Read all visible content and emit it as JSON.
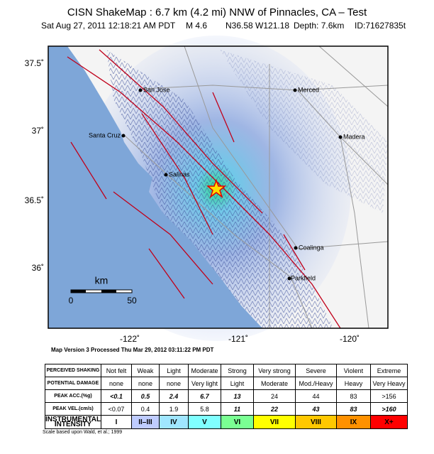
{
  "header": {
    "title": "CISN ShakeMap : 6.7 km (4.2 mi) NNW of Pinnacles, CA – Test",
    "subtitle": [
      "Sat Aug 27, 2011 12:18:21 AM PDT",
      "M 4.6",
      "N36.58 W121.18",
      "Depth: 7.6km",
      "ID:71627835t"
    ]
  },
  "map": {
    "cities": [
      "San Jose",
      "Merced",
      "Santa Cruz",
      "Madera",
      "Salinas",
      "Coalinga",
      "Parkfield"
    ],
    "lat_labels": [
      "37.5˚",
      "37˚",
      "36.5˚",
      "36˚"
    ],
    "lon_labels": [
      "-122˚",
      "-121˚",
      "-120˚"
    ],
    "scale_bar": {
      "unit": "km",
      "labels": [
        "0",
        "50"
      ]
    },
    "version_note": "Map Version 3 Processed Thu Mar 29, 2012 03:11:22 PM PDT"
  },
  "table": {
    "rows": [
      {
        "label": "PERCEIVED SHAKING",
        "cells": [
          "Not felt",
          "Weak",
          "Light",
          "Moderate",
          "Strong",
          "Very strong",
          "Severe",
          "Violent",
          "Extreme"
        ]
      },
      {
        "label": "POTENTIAL DAMAGE",
        "cells": [
          "none",
          "none",
          "none",
          "Very light",
          "Light",
          "Moderate",
          "Mod./Heavy",
          "Heavy",
          "Very Heavy"
        ]
      },
      {
        "label": "PEAK ACC.(%g)",
        "cells": [
          "<0.1",
          "0.5",
          "2.4",
          "6.7",
          "13",
          "24",
          "44",
          "83",
          ">156"
        ]
      },
      {
        "label": "PEAK VEL.(cm/s)",
        "cells": [
          "<0.07",
          "0.4",
          "1.9",
          "5.8",
          "11",
          "22",
          "43",
          "83",
          ">160"
        ]
      },
      {
        "label": "INSTRUMENTAL INTENSITY",
        "cells": [
          "I",
          "II–III",
          "IV",
          "V",
          "VI",
          "VII",
          "VIII",
          "IX",
          "X+"
        ]
      }
    ],
    "footnote": "Scale based upon Wald, et al.; 1999"
  }
}
